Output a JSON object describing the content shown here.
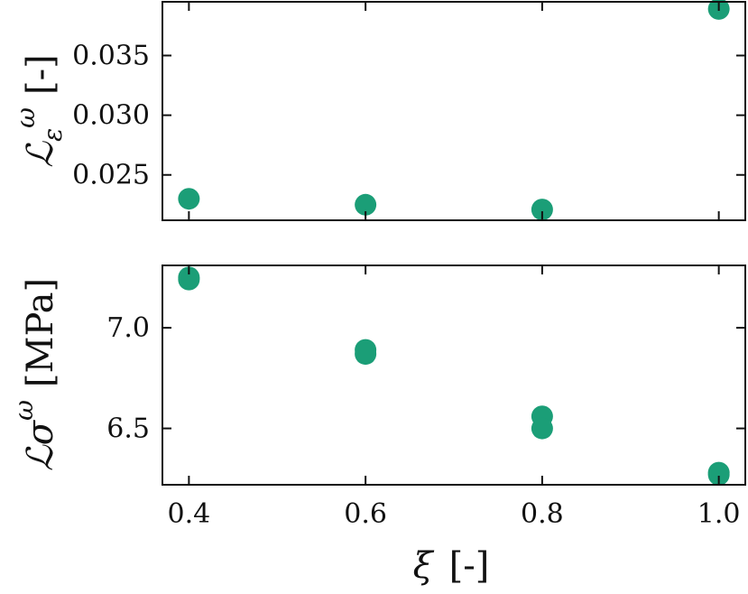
{
  "chart_data": [
    {
      "type": "scatter",
      "panel": "top",
      "ylabel_main": "ℒ",
      "ylabel_sub": "ε",
      "ylabel_sup": "ω",
      "ylabel_unit": "[-]",
      "xlim": [
        0.37,
        1.03
      ],
      "ylim": [
        0.0212,
        0.0395
      ],
      "yticks": [
        0.025,
        0.03,
        0.035
      ],
      "ytick_labels": [
        "0.025",
        "0.030",
        "0.035"
      ],
      "marker_color": "#1b9e77",
      "points": [
        {
          "x": 0.4,
          "y": 0.023
        },
        {
          "x": 0.6,
          "y": 0.0225
        },
        {
          "x": 0.8,
          "y": 0.0221
        },
        {
          "x": 1.0,
          "y": 0.0389
        }
      ]
    },
    {
      "type": "scatter",
      "panel": "bottom",
      "ylabel_main": "ℒ",
      "ylabel_sub": "σ",
      "ylabel_sup": "ω",
      "ylabel_unit": "[MPa]",
      "xlim": [
        0.37,
        1.03
      ],
      "ylim": [
        6.22,
        7.31
      ],
      "xticks": [
        0.4,
        0.6,
        0.8,
        1.0
      ],
      "xtick_labels": [
        "0.4",
        "0.6",
        "0.8",
        "1.0"
      ],
      "yticks": [
        6.5,
        7.0
      ],
      "ytick_labels": [
        "6.5",
        "7.0"
      ],
      "xlabel_symbol": "ξ",
      "xlabel_unit": "[-]",
      "marker_color": "#1b9e77",
      "points": [
        {
          "x": 0.4,
          "y": 7.25
        },
        {
          "x": 0.4,
          "y": 7.24
        },
        {
          "x": 0.6,
          "y": 6.89
        },
        {
          "x": 0.6,
          "y": 6.87
        },
        {
          "x": 0.8,
          "y": 6.56
        },
        {
          "x": 0.8,
          "y": 6.5
        },
        {
          "x": 1.0,
          "y": 6.28
        },
        {
          "x": 1.0,
          "y": 6.27
        }
      ]
    }
  ]
}
